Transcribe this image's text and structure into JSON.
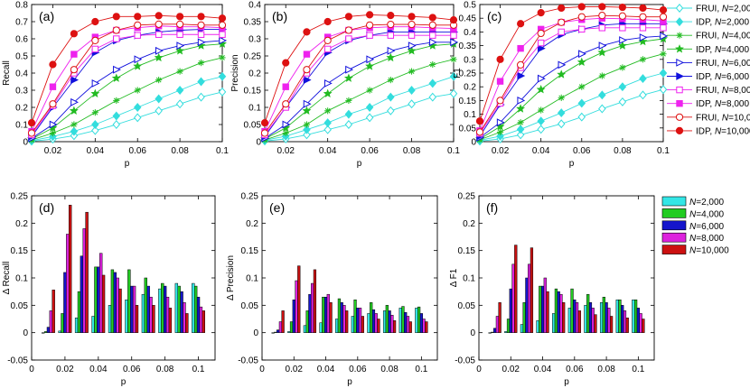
{
  "chart_data": {
    "line_panels": [
      {
        "type": "line",
        "panel_label": "(a)",
        "xlabel": "p",
        "ylabel": "Recall",
        "xlim": [
          0.01,
          0.1
        ],
        "ylim": [
          0,
          0.8
        ],
        "xticks": [
          "0.02",
          "0.04",
          "0.06",
          "0.08",
          "0.1"
        ],
        "yticks": [
          "0",
          "0.1",
          "0.2",
          "0.3",
          "0.4",
          "0.5",
          "0.6",
          "0.7",
          "0.8"
        ],
        "x": [
          0.01,
          0.02,
          0.03,
          0.04,
          0.05,
          0.06,
          0.07,
          0.08,
          0.09,
          0.1
        ],
        "series": [
          {
            "name": "FRUI, N=2,000",
            "values": [
              0.003,
              0.015,
              0.035,
              0.065,
              0.1,
              0.14,
              0.18,
              0.22,
              0.26,
              0.29
            ]
          },
          {
            "name": "IDP, N=2,000",
            "values": [
              0.006,
              0.03,
              0.06,
              0.1,
              0.15,
              0.2,
              0.25,
              0.3,
              0.35,
              0.38
            ]
          },
          {
            "name": "FRUI, N=4,000",
            "values": [
              0.01,
              0.05,
              0.1,
              0.17,
              0.24,
              0.3,
              0.36,
              0.41,
              0.46,
              0.49
            ]
          },
          {
            "name": "IDP, N=4,000",
            "values": [
              0.015,
              0.08,
              0.18,
              0.28,
              0.37,
              0.44,
              0.49,
              0.53,
              0.56,
              0.57
            ]
          },
          {
            "name": "FRUI, N=6,000",
            "values": [
              0.02,
              0.1,
              0.23,
              0.34,
              0.42,
              0.48,
              0.53,
              0.56,
              0.58,
              0.59
            ]
          },
          {
            "name": "IDP, N=6,000",
            "values": [
              0.03,
              0.2,
              0.36,
              0.52,
              0.59,
              0.62,
              0.64,
              0.65,
              0.655,
              0.655
            ]
          },
          {
            "name": "FRUI, N=8,000",
            "values": [
              0.04,
              0.21,
              0.4,
              0.54,
              0.6,
              0.62,
              0.625,
              0.625,
              0.625,
              0.625
            ]
          },
          {
            "name": "IDP, N=8,000",
            "values": [
              0.06,
              0.32,
              0.51,
              0.61,
              0.65,
              0.665,
              0.675,
              0.67,
              0.67,
              0.665
            ]
          },
          {
            "name": "FRUI, N=10,000",
            "values": [
              0.05,
              0.22,
              0.42,
              0.59,
              0.65,
              0.68,
              0.685,
              0.685,
              0.68,
              0.68
            ]
          },
          {
            "name": "IDP, N=10,000",
            "values": [
              0.11,
              0.45,
              0.63,
              0.7,
              0.73,
              0.73,
              0.735,
              0.73,
              0.73,
              0.72
            ]
          }
        ]
      },
      {
        "type": "line",
        "panel_label": "(b)",
        "xlabel": "p",
        "ylabel": "Precision",
        "xlim": [
          0.01,
          0.1
        ],
        "ylim": [
          0,
          0.4
        ],
        "xticks": [
          "0.02",
          "0.04",
          "0.06",
          "0.08",
          "0.1"
        ],
        "yticks": [
          "0",
          "0.05",
          "0.1",
          "0.15",
          "0.2",
          "0.25",
          "0.3",
          "0.35",
          "0.4"
        ],
        "x": [
          0.01,
          0.02,
          0.03,
          0.04,
          0.05,
          0.06,
          0.07,
          0.08,
          0.09,
          0.1
        ],
        "series": [
          {
            "name": "FRUI, N=2,000",
            "values": [
              0.002,
              0.008,
              0.02,
              0.035,
              0.05,
              0.07,
              0.09,
              0.11,
              0.13,
              0.14
            ]
          },
          {
            "name": "IDP, N=2,000",
            "values": [
              0.004,
              0.016,
              0.035,
              0.055,
              0.08,
              0.1,
              0.13,
              0.15,
              0.17,
              0.19
            ]
          },
          {
            "name": "FRUI, N=4,000",
            "values": [
              0.005,
              0.025,
              0.05,
              0.09,
              0.12,
              0.15,
              0.18,
              0.205,
              0.225,
              0.24
            ]
          },
          {
            "name": "IDP, N=4,000",
            "values": [
              0.008,
              0.04,
              0.09,
              0.14,
              0.185,
              0.22,
              0.245,
              0.265,
              0.28,
              0.285
            ]
          },
          {
            "name": "FRUI, N=6,000",
            "values": [
              0.01,
              0.05,
              0.11,
              0.17,
              0.21,
              0.24,
              0.265,
              0.28,
              0.29,
              0.29
            ]
          },
          {
            "name": "IDP, N=6,000",
            "values": [
              0.015,
              0.1,
              0.18,
              0.26,
              0.295,
              0.31,
              0.32,
              0.32,
              0.32,
              0.32
            ]
          },
          {
            "name": "FRUI, N=8,000",
            "values": [
              0.02,
              0.1,
              0.2,
              0.27,
              0.3,
              0.31,
              0.31,
              0.31,
              0.31,
              0.31
            ]
          },
          {
            "name": "IDP, N=8,000",
            "values": [
              0.03,
              0.16,
              0.255,
              0.305,
              0.325,
              0.332,
              0.335,
              0.335,
              0.332,
              0.33
            ]
          },
          {
            "name": "FRUI, N=10,000",
            "values": [
              0.025,
              0.11,
              0.21,
              0.295,
              0.325,
              0.34,
              0.342,
              0.342,
              0.34,
              0.34
            ]
          },
          {
            "name": "IDP, N=10,000",
            "values": [
              0.055,
              0.23,
              0.32,
              0.35,
              0.365,
              0.37,
              0.368,
              0.365,
              0.362,
              0.355
            ]
          }
        ]
      },
      {
        "type": "line",
        "panel_label": "(c)",
        "xlabel": "p",
        "ylabel": "F1",
        "xlim": [
          0.01,
          0.1
        ],
        "ylim": [
          0,
          0.5
        ],
        "xticks": [
          "0.02",
          "0.04",
          "0.06",
          "0.08",
          "0.1"
        ],
        "yticks": [
          "0",
          "0.05",
          "0.1",
          "0.15",
          "0.2",
          "0.25",
          "0.3",
          "0.35",
          "0.4",
          "0.45",
          "0.5"
        ],
        "x": [
          0.01,
          0.02,
          0.03,
          0.04,
          0.05,
          0.06,
          0.07,
          0.08,
          0.09,
          0.1
        ],
        "series": [
          {
            "name": "FRUI, N=2,000",
            "values": [
              0.002,
              0.01,
              0.025,
              0.045,
              0.065,
              0.09,
              0.12,
              0.145,
              0.17,
              0.19
            ]
          },
          {
            "name": "IDP, N=2,000",
            "values": [
              0.005,
              0.02,
              0.045,
              0.075,
              0.105,
              0.14,
              0.17,
              0.2,
              0.23,
              0.25
            ]
          },
          {
            "name": "FRUI, N=4,000",
            "values": [
              0.007,
              0.035,
              0.07,
              0.115,
              0.16,
              0.2,
              0.24,
              0.27,
              0.3,
              0.32
            ]
          },
          {
            "name": "IDP, N=4,000",
            "values": [
              0.01,
              0.055,
              0.12,
              0.19,
              0.245,
              0.29,
              0.325,
              0.35,
              0.365,
              0.375
            ]
          },
          {
            "name": "FRUI, N=6,000",
            "values": [
              0.015,
              0.07,
              0.15,
              0.23,
              0.28,
              0.32,
              0.35,
              0.37,
              0.38,
              0.385
            ]
          },
          {
            "name": "IDP, N=6,000",
            "values": [
              0.02,
              0.135,
              0.24,
              0.34,
              0.39,
              0.41,
              0.425,
              0.43,
              0.43,
              0.43
            ]
          },
          {
            "name": "FRUI, N=8,000",
            "values": [
              0.03,
              0.14,
              0.27,
              0.36,
              0.4,
              0.41,
              0.415,
              0.415,
              0.415,
              0.415
            ]
          },
          {
            "name": "IDP, N=8,000",
            "values": [
              0.04,
              0.22,
              0.34,
              0.41,
              0.435,
              0.445,
              0.45,
              0.448,
              0.445,
              0.44
            ]
          },
          {
            "name": "FRUI, N=10,000",
            "values": [
              0.035,
              0.15,
              0.28,
              0.395,
              0.435,
              0.455,
              0.46,
              0.458,
              0.455,
              0.455
            ]
          },
          {
            "name": "IDP, N=10,000",
            "values": [
              0.075,
              0.3,
              0.43,
              0.47,
              0.487,
              0.492,
              0.492,
              0.49,
              0.487,
              0.48
            ]
          }
        ]
      }
    ],
    "bar_panels": [
      {
        "type": "bar",
        "panel_label": "(d)",
        "xlabel": "p",
        "ylabel": "Δ Recall",
        "xlim": [
          0,
          0.11
        ],
        "ylim": [
          -0.05,
          0.25
        ],
        "xticks": [
          "0",
          "0.02",
          "0.04",
          "0.06",
          "0.08",
          "0.1"
        ],
        "yticks": [
          "-0.05",
          "0",
          "0.05",
          "0.1",
          "0.15",
          "0.2",
          "0.25"
        ],
        "x": [
          0.01,
          0.02,
          0.03,
          0.04,
          0.05,
          0.06,
          0.07,
          0.08,
          0.09,
          0.1
        ],
        "series": [
          {
            "name": "N=2,000",
            "values": [
              -0.001,
              0.003,
              0.027,
              0.03,
              0.05,
              0.06,
              0.07,
              0.08,
              0.09,
              0.09
            ]
          },
          {
            "name": "N=4,000",
            "values": [
              0.002,
              0.035,
              0.075,
              0.12,
              0.115,
              0.115,
              0.1,
              0.09,
              0.085,
              0.085
            ]
          },
          {
            "name": "N=6,000",
            "values": [
              0.01,
              0.11,
              0.14,
              0.12,
              0.11,
              0.085,
              0.085,
              0.085,
              0.075,
              0.065
            ]
          },
          {
            "name": "N=8,000",
            "values": [
              0.04,
              0.18,
              0.19,
              0.145,
              0.1,
              0.085,
              0.065,
              0.065,
              0.055,
              0.047
            ]
          },
          {
            "name": "N=10,000",
            "values": [
              0.078,
              0.233,
              0.22,
              0.105,
              0.08,
              0.05,
              0.05,
              0.045,
              0.035,
              0.04
            ]
          }
        ]
      },
      {
        "type": "bar",
        "panel_label": "(e)",
        "xlabel": "p",
        "ylabel": "Δ Precision",
        "xlim": [
          0,
          0.11
        ],
        "ylim": [
          -0.05,
          0.25
        ],
        "xticks": [
          "0",
          "0.02",
          "0.04",
          "0.06",
          "0.08",
          "0.1"
        ],
        "yticks": [
          "-0.05",
          "0",
          "0.05",
          "0.1",
          "0.15",
          "0.2",
          "0.25"
        ],
        "x": [
          0.01,
          0.02,
          0.03,
          0.04,
          0.05,
          0.06,
          0.07,
          0.08,
          0.09,
          0.1
        ],
        "series": [
          {
            "name": "N=2,000",
            "values": [
              -0.001,
              0.002,
              0.013,
              0.018,
              0.025,
              0.03,
              0.035,
              0.04,
              0.045,
              0.045
            ]
          },
          {
            "name": "N=4,000",
            "values": [
              0.001,
              0.02,
              0.04,
              0.065,
              0.062,
              0.06,
              0.055,
              0.05,
              0.048,
              0.047
            ]
          },
          {
            "name": "N=6,000",
            "values": [
              0.005,
              0.06,
              0.07,
              0.065,
              0.055,
              0.045,
              0.042,
              0.04,
              0.037,
              0.035
            ]
          },
          {
            "name": "N=8,000",
            "values": [
              0.02,
              0.095,
              0.09,
              0.07,
              0.05,
              0.045,
              0.035,
              0.032,
              0.03,
              0.025
            ]
          },
          {
            "name": "N=10,000",
            "values": [
              0.04,
              0.122,
              0.115,
              0.055,
              0.04,
              0.03,
              0.025,
              0.022,
              0.02,
              0.02
            ]
          }
        ]
      },
      {
        "type": "bar",
        "panel_label": "(f)",
        "xlabel": "p",
        "ylabel": "Δ F1",
        "xlim": [
          0,
          0.11
        ],
        "ylim": [
          -0.05,
          0.25
        ],
        "xticks": [
          "0",
          "0.02",
          "0.04",
          "0.06",
          "0.08",
          "0.1"
        ],
        "yticks": [
          "-0.05",
          "0",
          "0.05",
          "0.1",
          "0.15",
          "0.2",
          "0.25"
        ],
        "x": [
          0.01,
          0.02,
          0.03,
          0.04,
          0.05,
          0.06,
          0.07,
          0.08,
          0.09,
          0.1
        ],
        "series": [
          {
            "name": "N=2,000",
            "values": [
              -0.001,
              0.002,
              0.015,
              0.022,
              0.035,
              0.045,
              0.05,
              0.055,
              0.06,
              0.06
            ]
          },
          {
            "name": "N=4,000",
            "values": [
              0.001,
              0.025,
              0.055,
              0.085,
              0.08,
              0.08,
              0.07,
              0.065,
              0.06,
              0.06
            ]
          },
          {
            "name": "N=6,000",
            "values": [
              0.008,
              0.08,
              0.1,
              0.085,
              0.075,
              0.06,
              0.055,
              0.055,
              0.05,
              0.045
            ]
          },
          {
            "name": "N=8,000",
            "values": [
              0.03,
              0.125,
              0.125,
              0.1,
              0.07,
              0.055,
              0.045,
              0.045,
              0.04,
              0.035
            ]
          },
          {
            "name": "N=10,000",
            "values": [
              0.055,
              0.16,
              0.155,
              0.075,
              0.055,
              0.04,
              0.033,
              0.03,
              0.027,
              0.025
            ]
          }
        ]
      }
    ],
    "line_legend": [
      {
        "method": "FRUI",
        "label": "N=2,000",
        "color": "#33dddd",
        "marker": "diamond-open"
      },
      {
        "method": "IDP",
        "label": "N=2,000",
        "color": "#33dddd",
        "marker": "diamond-filled"
      },
      {
        "method": "FRUI",
        "label": "N=4,000",
        "color": "#22bb22",
        "marker": "asterisk"
      },
      {
        "method": "IDP",
        "label": "N=4,000",
        "color": "#22bb22",
        "marker": "star-filled"
      },
      {
        "method": "FRUI",
        "label": "N=6,000",
        "color": "#1111dd",
        "marker": "triangle-open"
      },
      {
        "method": "IDP",
        "label": "N=6,000",
        "color": "#1111dd",
        "marker": "triangle-filled"
      },
      {
        "method": "FRUI",
        "label": "N=8,000",
        "color": "#ee22ee",
        "marker": "square-open"
      },
      {
        "method": "IDP",
        "label": "N=8,000",
        "color": "#ee22ee",
        "marker": "square-filled"
      },
      {
        "method": "FRUI",
        "label": "N=10,000",
        "color": "#dd1111",
        "marker": "circle-open"
      },
      {
        "method": "IDP",
        "label": "N=10,000",
        "color": "#dd1111",
        "marker": "circle-filled"
      }
    ],
    "bar_legend": [
      {
        "label": "N=2,000",
        "color": "#33e6e6"
      },
      {
        "label": "N=4,000",
        "color": "#22cc22"
      },
      {
        "label": "N=6,000",
        "color": "#1515cc"
      },
      {
        "label": "N=8,000",
        "color": "#dd22dd"
      },
      {
        "label": "N=10,000",
        "color": "#cc1111"
      }
    ]
  }
}
